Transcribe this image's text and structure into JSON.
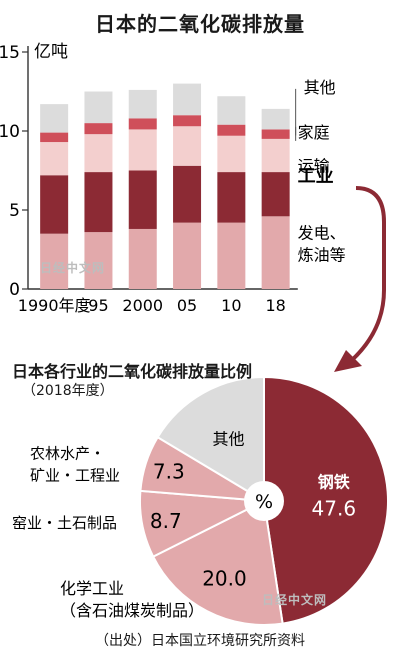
{
  "chart_data": [
    {
      "type": "bar",
      "stacked": true,
      "title": "日本的二氧化碳排放量",
      "unit_label": "亿吨",
      "categories": [
        "1990年度",
        "95",
        "2000",
        "05",
        "10",
        "18"
      ],
      "ylim": [
        0,
        15
      ],
      "yticks": [
        "0",
        "5",
        "10",
        "15"
      ],
      "grid": false,
      "legend_position": "right",
      "series": [
        {
          "name": "发电、炼油等",
          "color": "#e2a9ab",
          "values": [
            3.5,
            3.6,
            3.8,
            4.2,
            4.2,
            4.6
          ]
        },
        {
          "name": "工业",
          "color": "#8c2a34",
          "values": [
            3.7,
            3.8,
            3.7,
            3.6,
            3.2,
            2.8
          ]
        },
        {
          "name": "运输",
          "color": "#f3cfce",
          "values": [
            2.1,
            2.4,
            2.6,
            2.5,
            2.3,
            2.1
          ]
        },
        {
          "name": "家庭",
          "color": "#cf4f5a",
          "values": [
            0.6,
            0.7,
            0.7,
            0.7,
            0.7,
            0.6
          ]
        },
        {
          "name": "其他",
          "color": "#dcdcdc",
          "values": [
            1.8,
            2.0,
            1.8,
            2.0,
            1.8,
            1.3
          ]
        }
      ]
    },
    {
      "type": "pie",
      "title": "日本各行业的二氧化碳排放量比例",
      "subtitle": "（2018年度）",
      "center_label": "%",
      "slices": [
        {
          "name": "钢铁",
          "value": 47.6,
          "color": "#8c2a34"
        },
        {
          "name": "化学工业（含石油煤炭制品）",
          "line1": "化学工业",
          "line2": "（含石油煤炭制品）",
          "value": 20.0,
          "color": "#e2a9ab"
        },
        {
          "name": "窑业・土石制品",
          "value": 8.7,
          "color": "#e2a9ab"
        },
        {
          "name": "农林水产・矿业・工程业",
          "line1": "农林水产・",
          "line2": "矿业・工程业",
          "value": 7.3,
          "color": "#e2a9ab"
        },
        {
          "name": "其他",
          "value": 16.4,
          "color": "#dcdcdc"
        }
      ]
    }
  ],
  "source": "（出处）日本国立环境研究所资料",
  "watermark": "日经中文网"
}
